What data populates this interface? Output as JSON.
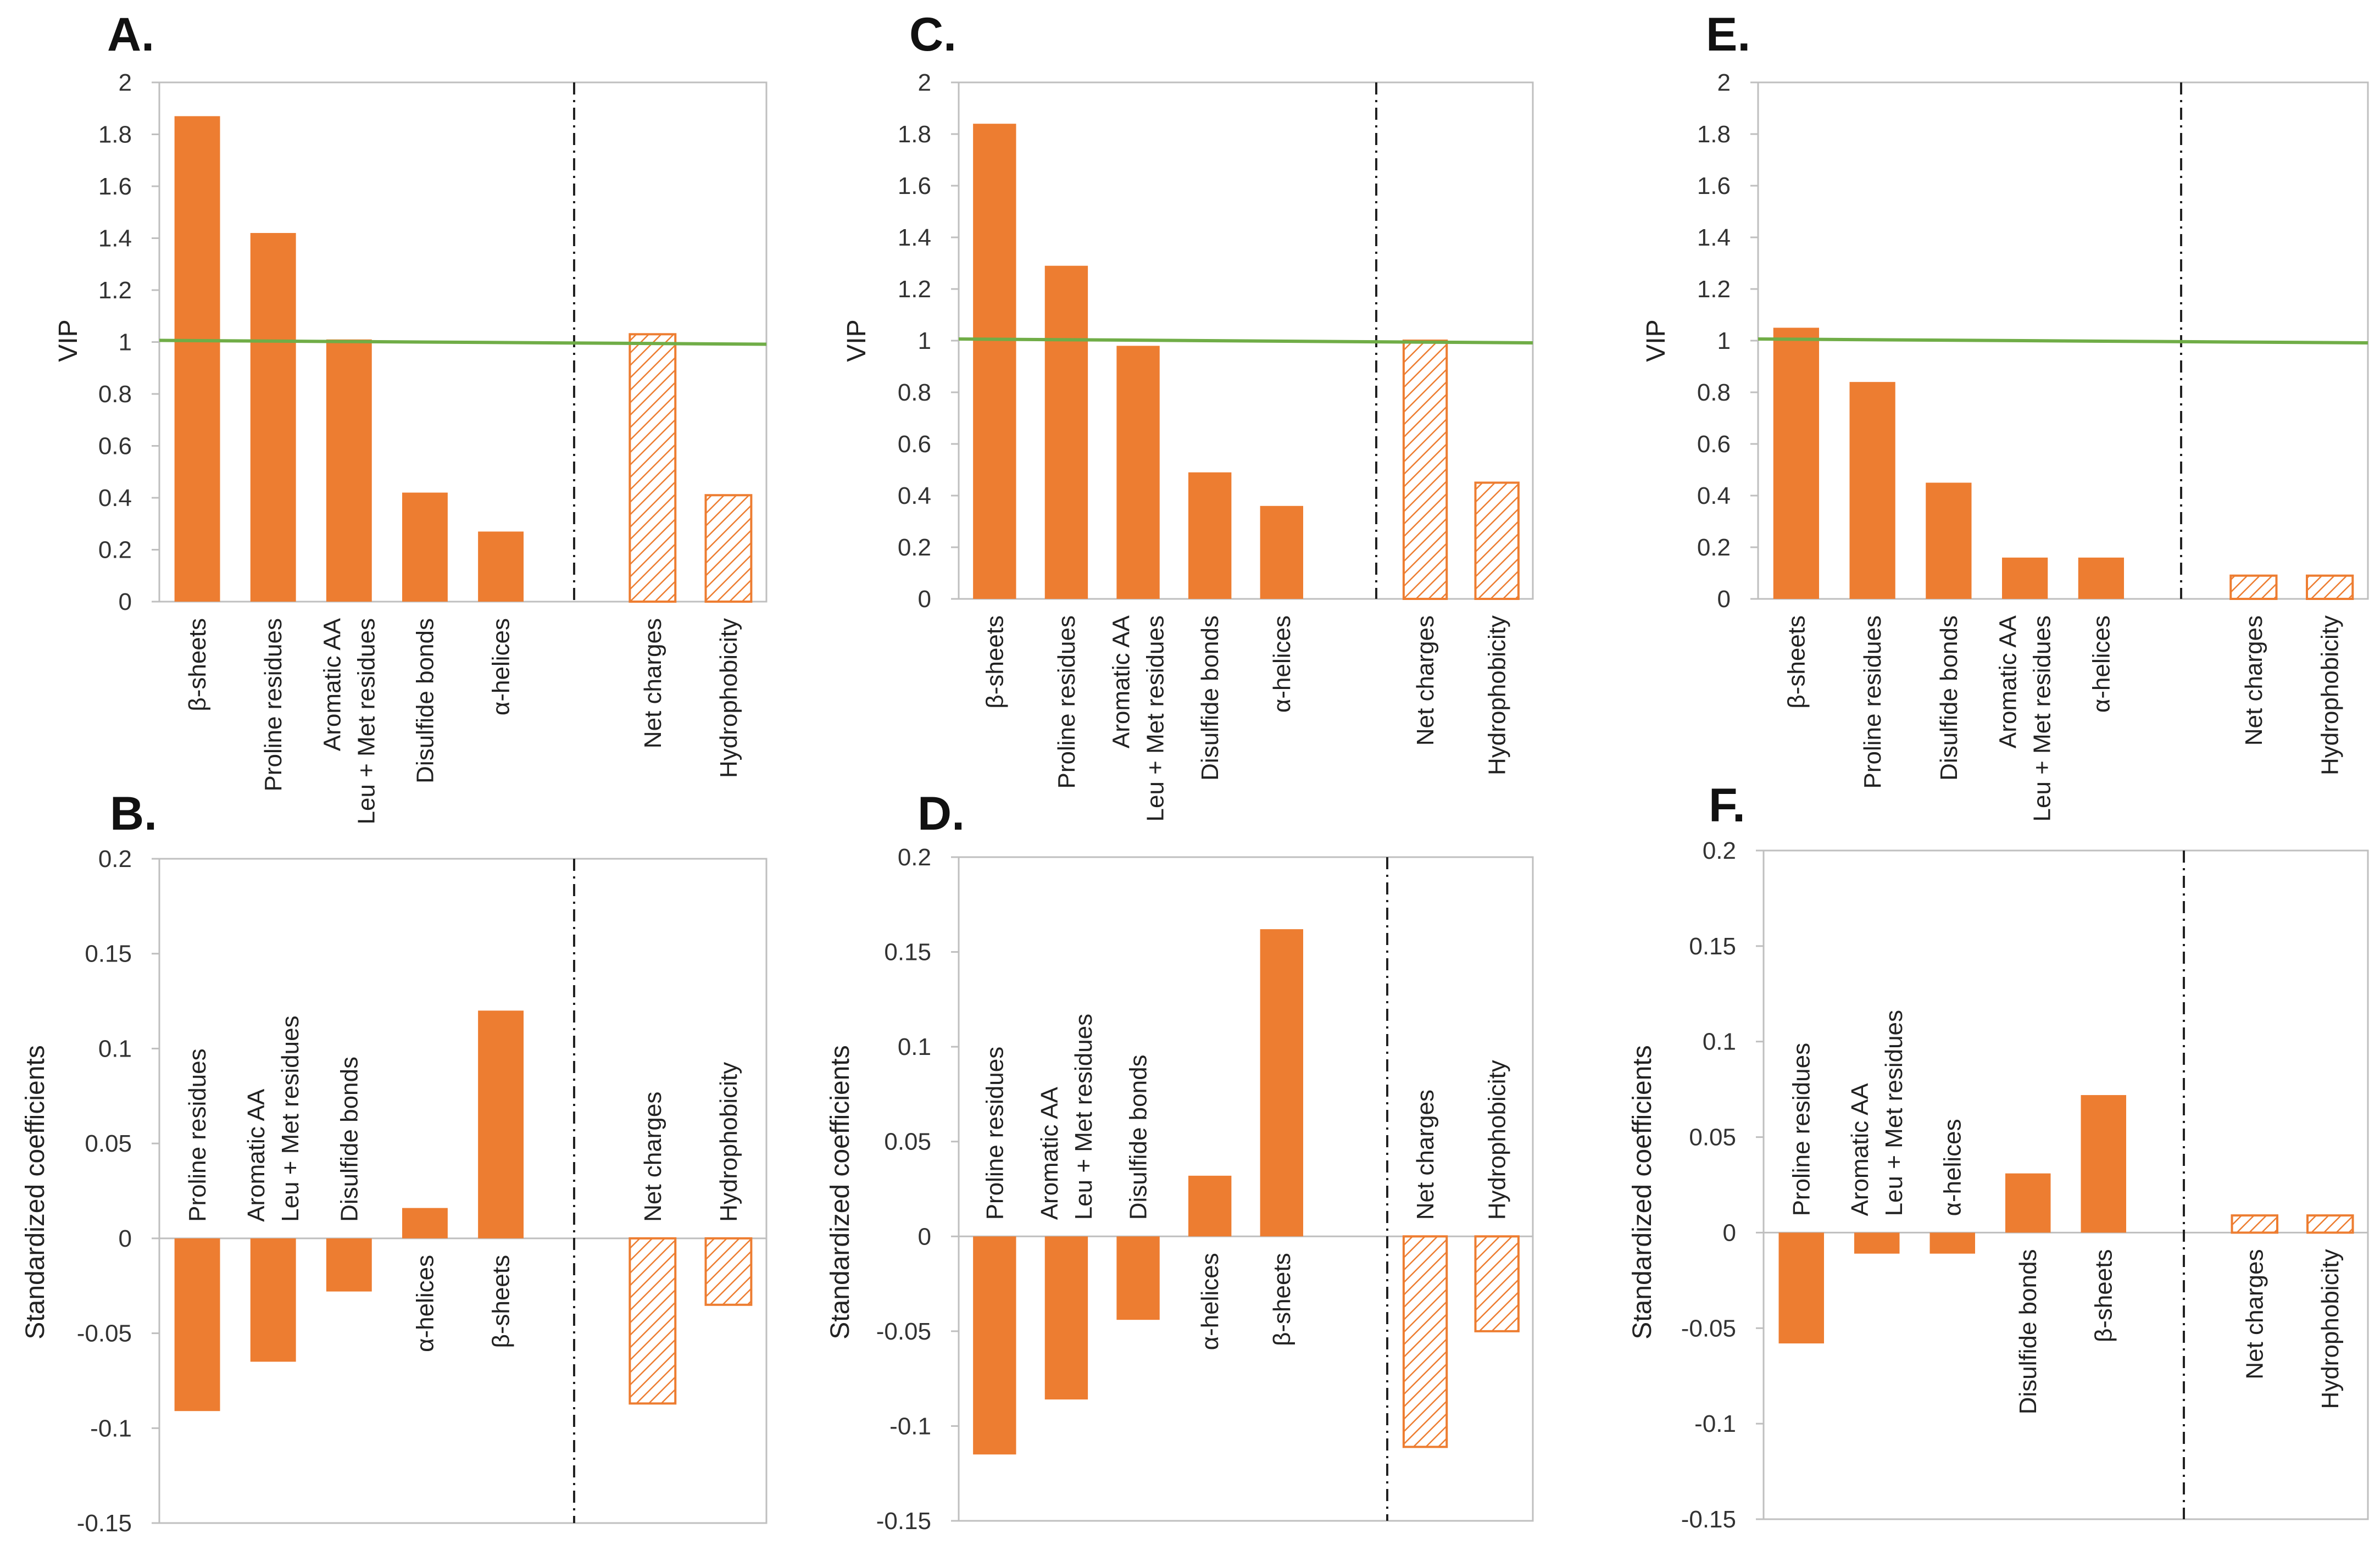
{
  "colors": {
    "bar": "#ED7D31",
    "threshold": "#70AD47",
    "axis": "#BFBFBF",
    "divider": "#222222"
  },
  "chart_data": [
    {
      "panel": "A.",
      "type": "bar",
      "ylabel": "VIP",
      "ylim": [
        0,
        2
      ],
      "yticks": [
        "0",
        "0.2",
        "0.4",
        "0.6",
        "0.8",
        "1",
        "1.2",
        "1.4",
        "1.6",
        "1.8",
        "2"
      ],
      "threshold": 1,
      "groups": [
        {
          "categories": [
            "β-sheets",
            "Proline residues",
            "Aromatic AA\nLeu + Met residues",
            "Disulfide bonds",
            "α-helices"
          ],
          "values": [
            1.87,
            1.42,
            1.01,
            0.42,
            0.27
          ],
          "style": "solid"
        },
        {
          "categories": [
            "Net charges",
            "Hydrophobicity"
          ],
          "values": [
            1.03,
            0.41
          ],
          "style": "hatched"
        }
      ]
    },
    {
      "panel": "C.",
      "type": "bar",
      "ylabel": "VIP",
      "ylim": [
        0,
        2
      ],
      "yticks": [
        "0",
        "0.2",
        "0.4",
        "0.6",
        "0.8",
        "1",
        "1.2",
        "1.4",
        "1.6",
        "1.8",
        "2"
      ],
      "threshold": 1,
      "groups": [
        {
          "categories": [
            "β-sheets",
            "Proline residues",
            "Aromatic AA\nLeu + Met residues",
            "Disulfide bonds",
            "α-helices"
          ],
          "values": [
            1.84,
            1.29,
            0.98,
            0.49,
            0.36
          ],
          "style": "solid"
        },
        {
          "categories": [
            "Net charges",
            "Hydrophobicity"
          ],
          "values": [
            1.0,
            0.45
          ],
          "style": "hatched"
        }
      ]
    },
    {
      "panel": "E.",
      "type": "bar",
      "ylabel": "VIP",
      "ylim": [
        0,
        2
      ],
      "yticks": [
        "0",
        "0.2",
        "0.4",
        "0.6",
        "0.8",
        "1",
        "1.2",
        "1.4",
        "1.6",
        "1.8",
        "2"
      ],
      "threshold": 1,
      "groups": [
        {
          "categories": [
            "β-sheets",
            "Proline residues",
            "Disulfide bonds",
            "Aromatic AA\nLeu + Met residues",
            "α-helices"
          ],
          "values": [
            1.05,
            0.84,
            0.45,
            0.16,
            0.16
          ],
          "style": "solid"
        },
        {
          "categories": [
            "Net charges",
            "Hydrophobicity"
          ],
          "values": [
            0.09,
            0.09
          ],
          "style": "hatched"
        }
      ]
    },
    {
      "panel": "B.",
      "type": "bar",
      "ylabel": "Standardized coefficients",
      "ylim": [
        -0.15,
        0.2
      ],
      "yticks": [
        "-0.15",
        "-0.1",
        "-0.05",
        "0",
        "0.05",
        "0.1",
        "0.15",
        "0.2"
      ],
      "groups": [
        {
          "categories": [
            "Proline residues",
            "Aromatic AA\nLeu + Met residues",
            "Disulfide bonds",
            "α-helices",
            "β-sheets"
          ],
          "values": [
            -0.091,
            -0.065,
            -0.028,
            0.016,
            0.12
          ],
          "style": "solid"
        },
        {
          "categories": [
            "Net charges",
            "Hydrophobicity"
          ],
          "values": [
            -0.087,
            -0.035
          ],
          "style": "hatched"
        }
      ]
    },
    {
      "panel": "D.",
      "type": "bar",
      "ylabel": "Standardized coefficients",
      "ylim": [
        -0.15,
        0.2
      ],
      "yticks": [
        "-0.15",
        "-0.1",
        "-0.05",
        "0",
        "0.05",
        "0.1",
        "0.15",
        "0.2"
      ],
      "groups": [
        {
          "categories": [
            "Proline residues",
            "Aromatic AA\nLeu + Met residues",
            "Disulfide bonds",
            "α-helices",
            "β-sheets"
          ],
          "values": [
            -0.115,
            -0.086,
            -0.044,
            0.032,
            0.162
          ],
          "style": "solid"
        },
        {
          "categories": [
            "Net charges",
            "Hydrophobicity"
          ],
          "values": [
            -0.111,
            -0.05
          ],
          "style": "hatched"
        }
      ]
    },
    {
      "panel": "F.",
      "type": "bar",
      "ylabel": "Standardized coefficients",
      "ylim": [
        -0.15,
        0.2
      ],
      "yticks": [
        "-0.15",
        "-0.1",
        "-0.05",
        "0",
        "0.05",
        "0.1",
        "0.15",
        "0.2"
      ],
      "groups": [
        {
          "categories": [
            "Proline residues",
            "Aromatic AA\nLeu + Met residues",
            "α-helices",
            "Disulfide bonds",
            "β-sheets"
          ],
          "values": [
            -0.058,
            -0.011,
            -0.011,
            0.031,
            0.072
          ],
          "style": "solid"
        },
        {
          "categories": [
            "Net charges",
            "Hydrophobicity"
          ],
          "values": [
            0.009,
            0.009
          ],
          "style": "hatched"
        }
      ]
    }
  ]
}
